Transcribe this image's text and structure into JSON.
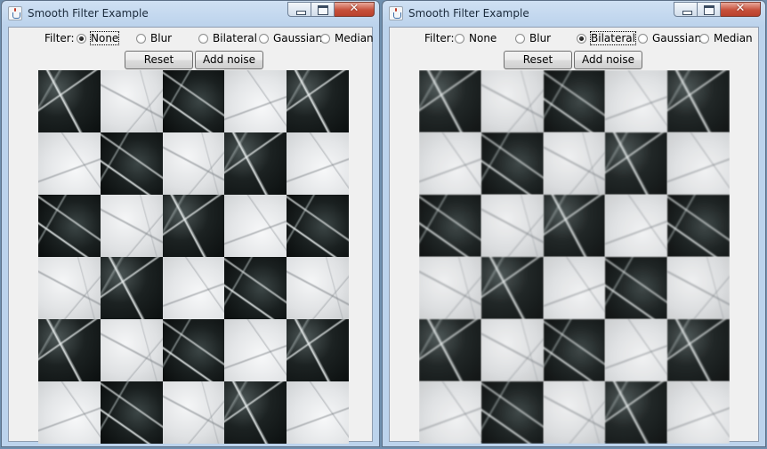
{
  "windows": [
    {
      "title": "Smooth Filter Example",
      "controls": {
        "minimize": "",
        "maximize": "",
        "close": "✕"
      },
      "filter_label": "Filter:",
      "filter_options": [
        {
          "label": "None",
          "selected": true,
          "focused": true
        },
        {
          "label": "Blur",
          "selected": false
        },
        {
          "label": "Bilateral",
          "selected": false
        },
        {
          "label": "Gaussian",
          "selected": false
        },
        {
          "label": "Median",
          "selected": false
        }
      ],
      "buttons": {
        "reset": "Reset",
        "add_noise": "Add noise"
      },
      "image": {
        "description_icon": "marble-checkerboard-image",
        "state": "original"
      }
    },
    {
      "title": "Smooth Filter Example",
      "controls": {
        "minimize": "",
        "maximize": "",
        "close": "✕"
      },
      "filter_label": "Filter:",
      "filter_options": [
        {
          "label": "None",
          "selected": false
        },
        {
          "label": "Blur",
          "selected": false
        },
        {
          "label": "Bilateral",
          "selected": true,
          "focused": true
        },
        {
          "label": "Gaussian",
          "selected": false
        },
        {
          "label": "Median",
          "selected": false
        }
      ],
      "buttons": {
        "reset": "Reset",
        "add_noise": "Add noise"
      },
      "image": {
        "description_icon": "marble-checkerboard-image",
        "state": "bilateral-filtered"
      }
    }
  ],
  "colors": {
    "desktop": "#6f8fae",
    "client": "#f0f0f0",
    "titlebar": "#bcd3ec",
    "close_button": "#c7503b"
  }
}
